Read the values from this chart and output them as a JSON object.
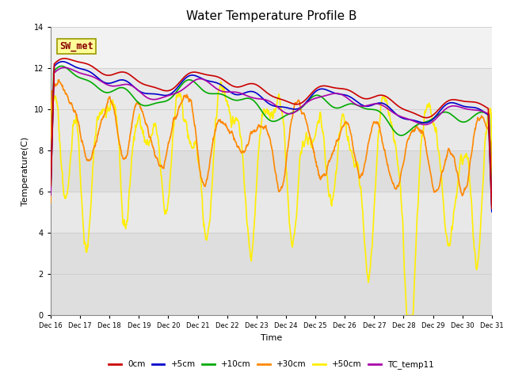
{
  "title": "Water Temperature Profile B",
  "xlabel": "Time",
  "ylabel": "Temperature(C)",
  "ylim": [
    0,
    14
  ],
  "yticks": [
    0,
    2,
    4,
    6,
    8,
    10,
    12,
    14
  ],
  "series": {
    "0cm": {
      "color": "#cc0000",
      "lw": 1.2
    },
    "+5cm": {
      "color": "#0000cc",
      "lw": 1.2
    },
    "+10cm": {
      "color": "#00aa00",
      "lw": 1.2
    },
    "+30cm": {
      "color": "#ff8800",
      "lw": 1.2
    },
    "+50cm": {
      "color": "#ffee00",
      "lw": 1.2
    },
    "TC_temp11": {
      "color": "#aa00aa",
      "lw": 1.2
    }
  },
  "legend_order": [
    "0cm",
    "+5cm",
    "+10cm",
    "+30cm",
    "+50cm",
    "TC_temp11"
  ],
  "bg_color": "#ffffff",
  "plot_bg_color": "#f2f2f2",
  "band_light": "#f2f2f2",
  "band_dark": "#e0e0e0",
  "sw_met_box_color": "#ffff99",
  "sw_met_text_color": "#880000",
  "annotation_text": "SW_met",
  "title_fontsize": 11,
  "axis_fontsize": 8,
  "tick_fontsize": 7
}
